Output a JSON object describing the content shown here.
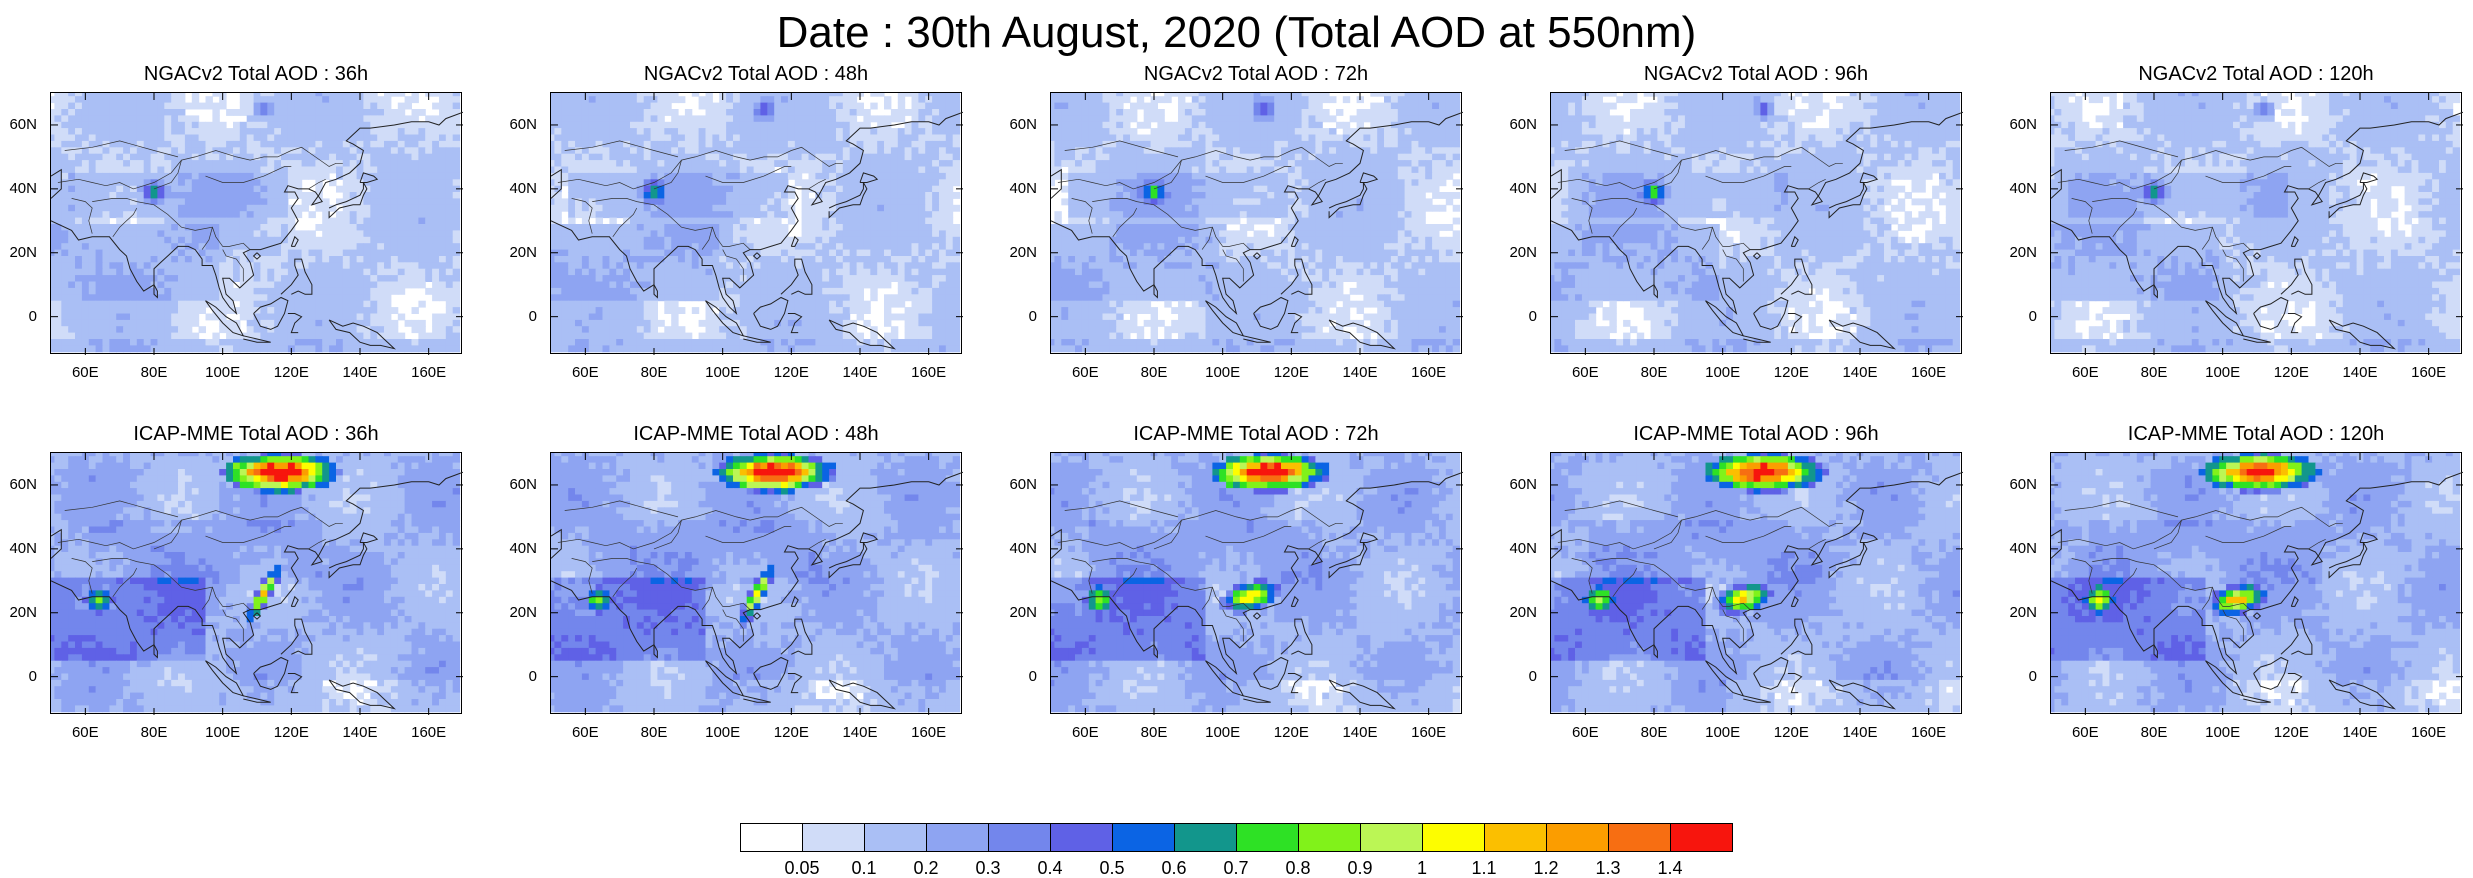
{
  "title": "Date : 30th August, 2020 (Total AOD at 550nm)",
  "rows": [
    {
      "model": "NGACv2",
      "panels": [
        {
          "title": "NGACv2 Total AOD : 36h"
        },
        {
          "title": "NGACv2 Total AOD : 48h"
        },
        {
          "title": "NGACv2 Total AOD : 72h"
        },
        {
          "title": "NGACv2 Total AOD : 96h"
        },
        {
          "title": "NGACv2 Total AOD : 120h"
        }
      ]
    },
    {
      "model": "ICAP-MME",
      "panels": [
        {
          "title": "ICAP-MME Total AOD : 36h"
        },
        {
          "title": "ICAP-MME Total AOD : 48h"
        },
        {
          "title": "ICAP-MME Total AOD : 72h"
        },
        {
          "title": "ICAP-MME Total AOD : 96h"
        },
        {
          "title": "ICAP-MME Total AOD : 120h"
        }
      ]
    }
  ],
  "lat_labels": [
    "60N",
    "40N",
    "20N",
    "0"
  ],
  "lon_labels": [
    "60E",
    "80E",
    "100E",
    "120E",
    "140E",
    "160E"
  ],
  "colorbar": {
    "labels": [
      "0.05",
      "0.1",
      "0.2",
      "0.3",
      "0.4",
      "0.5",
      "0.6",
      "0.7",
      "0.8",
      "0.9",
      "1",
      "1.1",
      "1.2",
      "1.3",
      "1.4"
    ],
    "colors": [
      "#ffffff",
      "#d0dcf8",
      "#aabff5",
      "#8ea4f2",
      "#7386ec",
      "#5f61e6",
      "#0b64e4",
      "#12968c",
      "#2ee125",
      "#81f21a",
      "#bbf655",
      "#fdfd00",
      "#fbbf00",
      "#fb9d00",
      "#f76e12",
      "#f7150d"
    ]
  }
}
